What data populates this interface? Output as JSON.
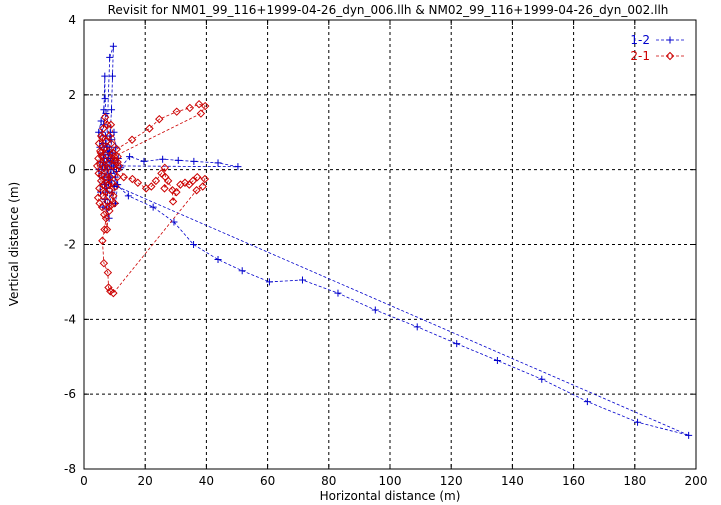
{
  "chart_data": {
    "type": "scatter",
    "title": "Revisit for NM01_99_116+1999-04-26_dyn_006.llh & NM02_99_116+1999-04-26_dyn_002.llh",
    "xlabel": "Horizontal distance (m)",
    "ylabel": "Vertical distance (m)",
    "xlim": [
      0,
      200
    ],
    "ylim": [
      -8,
      4
    ],
    "xticks": [
      0,
      20,
      40,
      60,
      80,
      100,
      120,
      140,
      160,
      180,
      200
    ],
    "yticks": [
      -8,
      -6,
      -4,
      -2,
      0,
      2,
      4
    ],
    "grid": true,
    "legend_position": "top-right",
    "series": [
      {
        "name": "1-2",
        "color": "#0000cc",
        "marker": "plus",
        "line": "dashed",
        "points": [
          [
            7.4,
            0.6
          ],
          [
            8.4,
            3.0
          ],
          [
            9.6,
            3.3
          ],
          [
            9.3,
            2.5
          ],
          [
            9.0,
            1.6
          ],
          [
            8.5,
            0.9
          ],
          [
            8.3,
            0.5
          ],
          [
            8.1,
            0.3
          ],
          [
            7.8,
            0.6
          ],
          [
            7.5,
            0.2
          ],
          [
            8.9,
            0.8
          ],
          [
            9.2,
            0.3
          ],
          [
            8.8,
            -0.1
          ],
          [
            9.6,
            0.0
          ],
          [
            12.0,
            0.05
          ],
          [
            14.9,
            0.35
          ],
          [
            19.6,
            0.22
          ],
          [
            25.7,
            0.28
          ],
          [
            30.8,
            0.25
          ],
          [
            35.9,
            0.22
          ],
          [
            43.8,
            0.18
          ],
          [
            50.3,
            0.08
          ],
          [
            9.0,
            0.1
          ],
          [
            8.4,
            -0.2
          ],
          [
            10.7,
            -0.4
          ],
          [
            14.5,
            -0.7
          ],
          [
            22.6,
            -1.0
          ],
          [
            29.4,
            -1.4
          ],
          [
            35.8,
            -2.0
          ],
          [
            43.8,
            -2.4
          ],
          [
            51.7,
            -2.7
          ],
          [
            60.6,
            -3.0
          ],
          [
            71.4,
            -2.95
          ],
          [
            83.0,
            -3.3
          ],
          [
            95.2,
            -3.75
          ],
          [
            108.9,
            -4.2
          ],
          [
            121.8,
            -4.65
          ],
          [
            135.1,
            -5.1
          ],
          [
            149.6,
            -5.6
          ],
          [
            164.5,
            -6.2
          ],
          [
            180.9,
            -6.75
          ],
          [
            197.6,
            -7.1
          ],
          [
            8.0,
            -0.35
          ],
          [
            7.2,
            -0.5
          ],
          [
            6.6,
            -0.2
          ],
          [
            6.0,
            0.1
          ],
          [
            5.3,
            0.2
          ],
          [
            4.9,
            0.0
          ],
          [
            5.4,
            -0.6
          ],
          [
            6.2,
            -1.0
          ],
          [
            6.9,
            -0.8
          ],
          [
            7.5,
            -1.05
          ],
          [
            8.2,
            -1.3
          ],
          [
            7.6,
            -0.6
          ],
          [
            6.5,
            0.4
          ],
          [
            5.8,
            1.0
          ],
          [
            6.4,
            1.2
          ],
          [
            7.2,
            1.5
          ],
          [
            6.9,
            1.9
          ],
          [
            6.8,
            2.5
          ],
          [
            6.5,
            1.6
          ],
          [
            5.6,
            1.3
          ],
          [
            4.8,
            1.0
          ],
          [
            5.2,
            0.6
          ],
          [
            6.1,
            0.7
          ],
          [
            7.0,
            0.9
          ],
          [
            8.6,
            1.0
          ],
          [
            9.8,
            1.0
          ],
          [
            10.4,
            0.6
          ],
          [
            9.7,
            0.2
          ],
          [
            10.2,
            -0.2
          ],
          [
            11.0,
            -0.4
          ],
          [
            10.3,
            -0.9
          ],
          [
            9.1,
            -0.6
          ],
          [
            8.4,
            -0.9
          ],
          [
            7.9,
            -0.2
          ],
          [
            7.1,
            0.1
          ],
          [
            6.3,
            0.3
          ],
          [
            5.8,
            -0.1
          ],
          [
            6.7,
            -0.4
          ],
          [
            7.7,
            0.0
          ],
          [
            8.6,
            0.25
          ],
          [
            9.4,
            0.45
          ],
          [
            10.1,
            0.15
          ],
          [
            11.2,
            0.3
          ],
          [
            10.6,
            -0.05
          ],
          [
            9.9,
            -0.45
          ],
          [
            8.8,
            -0.3
          ],
          [
            7.9,
            0.4
          ],
          [
            7.0,
            0.7
          ],
          [
            6.2,
            0.45
          ]
        ]
      },
      {
        "name": "2-1",
        "color": "#cc0000",
        "marker": "diamond",
        "line": "dashed",
        "points": [
          [
            8.8,
            1.2
          ],
          [
            10.7,
            0.55
          ],
          [
            15.7,
            0.8
          ],
          [
            21.4,
            1.1
          ],
          [
            24.6,
            1.35
          ],
          [
            30.3,
            1.55
          ],
          [
            34.6,
            1.65
          ],
          [
            37.6,
            1.75
          ],
          [
            39.6,
            1.7
          ],
          [
            38.2,
            1.5
          ],
          [
            9.8,
            0.35
          ],
          [
            11.0,
            0.2
          ],
          [
            13.0,
            -0.2
          ],
          [
            15.8,
            -0.25
          ],
          [
            17.6,
            -0.35
          ],
          [
            20.3,
            -0.5
          ],
          [
            22.0,
            -0.45
          ],
          [
            23.5,
            -0.3
          ],
          [
            25.3,
            -0.1
          ],
          [
            26.4,
            0.05
          ],
          [
            26.6,
            -0.2
          ],
          [
            26.3,
            -0.5
          ],
          [
            27.5,
            -0.3
          ],
          [
            28.9,
            -0.55
          ],
          [
            29.1,
            -0.85
          ],
          [
            30.2,
            -0.6
          ],
          [
            31.5,
            -0.4
          ],
          [
            33.0,
            -0.35
          ],
          [
            34.4,
            -0.4
          ],
          [
            35.6,
            -0.3
          ],
          [
            37.0,
            -0.2
          ],
          [
            39.5,
            -0.25
          ],
          [
            38.8,
            -0.45
          ],
          [
            36.8,
            -0.55
          ],
          [
            9.6,
            -3.3
          ],
          [
            8.6,
            -3.25
          ],
          [
            8.0,
            -3.15
          ],
          [
            7.8,
            -2.75
          ],
          [
            6.5,
            -2.5
          ],
          [
            6.0,
            -1.9
          ],
          [
            6.7,
            -1.6
          ],
          [
            7.2,
            -1.3
          ],
          [
            6.6,
            -1.2
          ],
          [
            5.9,
            -1.0
          ],
          [
            5.1,
            -0.9
          ],
          [
            4.6,
            -0.75
          ],
          [
            5.0,
            -0.5
          ],
          [
            5.6,
            -0.3
          ],
          [
            4.8,
            -0.1
          ],
          [
            4.3,
            0.1
          ],
          [
            4.7,
            0.3
          ],
          [
            5.3,
            0.5
          ],
          [
            4.9,
            0.7
          ],
          [
            5.6,
            0.9
          ],
          [
            6.3,
            1.1
          ],
          [
            6.9,
            1.4
          ],
          [
            7.6,
            1.2
          ],
          [
            8.2,
            0.9
          ],
          [
            8.9,
            0.7
          ],
          [
            9.4,
            0.45
          ],
          [
            10.1,
            0.25
          ],
          [
            10.6,
            0.0
          ],
          [
            11.0,
            0.35
          ],
          [
            11.4,
            0.1
          ],
          [
            10.9,
            -0.2
          ],
          [
            10.3,
            -0.45
          ],
          [
            9.6,
            -0.7
          ],
          [
            8.9,
            -0.95
          ],
          [
            8.3,
            -1.1
          ],
          [
            7.6,
            -0.85
          ],
          [
            7.0,
            -0.6
          ],
          [
            6.4,
            -0.4
          ],
          [
            5.8,
            -0.15
          ],
          [
            5.3,
            0.15
          ],
          [
            5.9,
            0.35
          ],
          [
            6.6,
            0.55
          ],
          [
            7.3,
            0.75
          ],
          [
            8.0,
            0.5
          ],
          [
            8.7,
            0.3
          ],
          [
            9.3,
            0.1
          ],
          [
            8.6,
            -0.2
          ],
          [
            7.9,
            -0.4
          ],
          [
            7.2,
            -0.2
          ],
          [
            6.5,
            0.05
          ],
          [
            7.1,
            0.25
          ],
          [
            7.8,
            0.05
          ],
          [
            8.4,
            -0.55
          ],
          [
            9.1,
            -0.35
          ],
          [
            6.2,
            -0.7
          ],
          [
            5.5,
            0.45
          ],
          [
            10.0,
            -0.9
          ],
          [
            6.0,
            0.85
          ],
          [
            7.5,
            -1.6
          ],
          [
            8.1,
            -1.0
          ]
        ]
      }
    ]
  }
}
